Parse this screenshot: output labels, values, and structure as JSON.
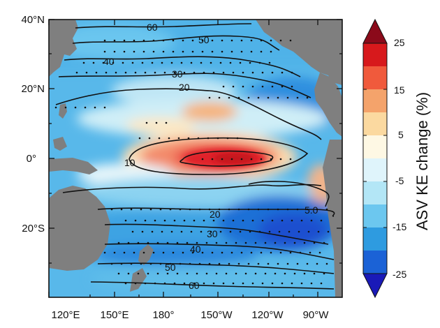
{
  "map": {
    "lat_ticks": [
      "40°N",
      "20°N",
      "0°",
      "20°S"
    ],
    "lon_ticks": [
      "120°E",
      "150°E",
      "180°",
      "150°W",
      "120°W",
      "90°W"
    ],
    "contour_labels": [
      "60",
      "50",
      "40",
      "30",
      "20",
      "10",
      "20",
      "30",
      "40",
      "50",
      "60",
      "5.0"
    ]
  },
  "colorbar": {
    "title": "ASV KE change (%)",
    "ticks": [
      "25",
      "15",
      "5",
      "-5",
      "-15",
      "-25"
    ],
    "colors": [
      "#8b0a1a",
      "#d7191c",
      "#f05a3c",
      "#f4a36b",
      "#fbd9a0",
      "#fef8e4",
      "#dff4fb",
      "#b3e6f6",
      "#6cc7ef",
      "#2e9be0",
      "#1b62d6",
      "#1a1ab8"
    ],
    "missing_color": "#7f7f7f"
  }
}
